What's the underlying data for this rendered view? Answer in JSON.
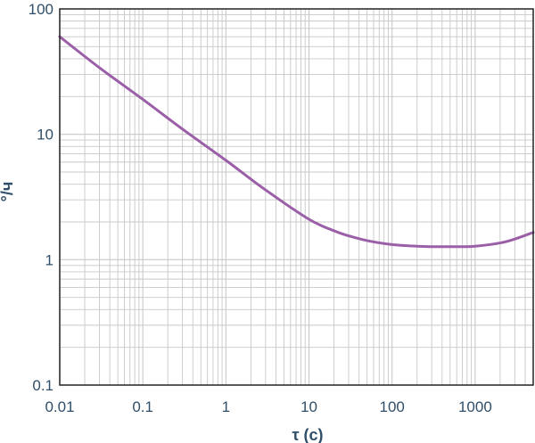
{
  "chart_data": {
    "type": "line",
    "xscale": "log",
    "yscale": "log",
    "xlim": [
      0.01,
      5000
    ],
    "ylim": [
      0.1,
      100
    ],
    "xlabel": "τ (c)",
    "ylabel": "°/ч",
    "x_ticks": [
      {
        "value": 0.01,
        "label": "0.01"
      },
      {
        "value": 0.1,
        "label": "0.1"
      },
      {
        "value": 1,
        "label": "1"
      },
      {
        "value": 10,
        "label": "10"
      },
      {
        "value": 100,
        "label": "100"
      },
      {
        "value": 1000,
        "label": "1000"
      }
    ],
    "y_ticks": [
      {
        "value": 0.1,
        "label": "0.1"
      },
      {
        "value": 1,
        "label": "1"
      },
      {
        "value": 10,
        "label": "10"
      },
      {
        "value": 100,
        "label": "100"
      }
    ],
    "grid": true,
    "series": [
      {
        "x": [
          0.01,
          0.03,
          0.1,
          0.3,
          1,
          3,
          10,
          20,
          30,
          50,
          100,
          200,
          300,
          500,
          700,
          1000,
          2000,
          3000,
          5000
        ],
        "y": [
          60,
          34,
          19,
          11,
          6.2,
          3.6,
          2.1,
          1.7,
          1.55,
          1.42,
          1.32,
          1.28,
          1.27,
          1.27,
          1.27,
          1.28,
          1.36,
          1.46,
          1.65
        ]
      }
    ],
    "colors": {
      "line": "#9b5fa8",
      "grid": "#c8c8c8",
      "axis": "#222222",
      "text": "#2f4f6a"
    }
  }
}
